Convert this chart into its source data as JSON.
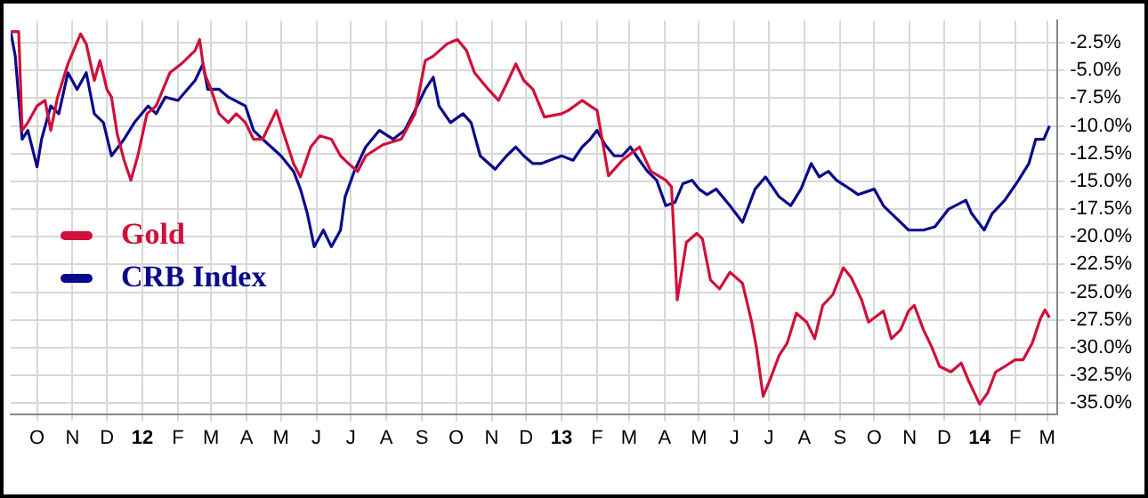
{
  "chart_data": {
    "type": "line",
    "legend": "left",
    "grid": true,
    "marker": "none",
    "line_style": "solid",
    "xlim": [
      "2011-09-08",
      "2014-03-10"
    ],
    "xticks": [
      {
        "value": "2011-10-01",
        "label": "O"
      },
      {
        "value": "2011-11-01",
        "label": "N"
      },
      {
        "value": "2011-12-01",
        "label": "D"
      },
      {
        "value": "2012-01-01",
        "label": "12"
      },
      {
        "value": "2012-02-01",
        "label": "F"
      },
      {
        "value": "2012-03-01",
        "label": "M"
      },
      {
        "value": "2012-04-01",
        "label": "A"
      },
      {
        "value": "2012-05-01",
        "label": "M"
      },
      {
        "value": "2012-06-01",
        "label": "J"
      },
      {
        "value": "2012-07-01",
        "label": "J"
      },
      {
        "value": "2012-08-01",
        "label": "A"
      },
      {
        "value": "2012-09-01",
        "label": "S"
      },
      {
        "value": "2012-10-01",
        "label": "O"
      },
      {
        "value": "2012-11-01",
        "label": "N"
      },
      {
        "value": "2012-12-01",
        "label": "D"
      },
      {
        "value": "2013-01-01",
        "label": "13"
      },
      {
        "value": "2013-02-01",
        "label": "F"
      },
      {
        "value": "2013-03-01",
        "label": "M"
      },
      {
        "value": "2013-04-01",
        "label": "A"
      },
      {
        "value": "2013-05-01",
        "label": "M"
      },
      {
        "value": "2013-06-01",
        "label": "J"
      },
      {
        "value": "2013-07-01",
        "label": "J"
      },
      {
        "value": "2013-08-01",
        "label": "A"
      },
      {
        "value": "2013-09-01",
        "label": "S"
      },
      {
        "value": "2013-10-01",
        "label": "O"
      },
      {
        "value": "2013-11-01",
        "label": "N"
      },
      {
        "value": "2013-12-01",
        "label": "D"
      },
      {
        "value": "2014-01-01",
        "label": "14"
      },
      {
        "value": "2014-02-01",
        "label": "F"
      },
      {
        "value": "2014-03-01",
        "label": "M"
      }
    ],
    "ylim": [
      -36,
      -0.5
    ],
    "yticks": [
      {
        "value": -2.5,
        "label": "-2.5%"
      },
      {
        "value": -5,
        "label": "-5.0%"
      },
      {
        "value": -7.5,
        "label": "-7.5%"
      },
      {
        "value": -10,
        "label": "-10.0%"
      },
      {
        "value": -12.5,
        "label": "-12.5%"
      },
      {
        "value": -15,
        "label": "-15.0%"
      },
      {
        "value": -17.5,
        "label": "-17.5%"
      },
      {
        "value": -20,
        "label": "-20.0%"
      },
      {
        "value": -22.5,
        "label": "-22.5%"
      },
      {
        "value": -25,
        "label": "-25.0%"
      },
      {
        "value": -27.5,
        "label": "-27.5%"
      },
      {
        "value": -30,
        "label": "-30.0%"
      },
      {
        "value": -32.5,
        "label": "-32.5%"
      },
      {
        "value": -35,
        "label": "-35.0%"
      }
    ],
    "series": [
      {
        "name": "Gold",
        "color": "#d0103a",
        "x": [
          "2011-09-08",
          "2011-09-15",
          "2011-09-18",
          "2011-09-23",
          "2011-10-01",
          "2011-10-08",
          "2011-10-13",
          "2011-10-19",
          "2011-10-28",
          "2011-11-08",
          "2011-11-13",
          "2011-11-20",
          "2011-11-25",
          "2011-12-01",
          "2011-12-05",
          "2011-12-10",
          "2011-12-16",
          "2011-12-22",
          "2011-12-28",
          "2012-01-05",
          "2012-01-13",
          "2012-01-25",
          "2012-02-04",
          "2012-02-16",
          "2012-02-20",
          "2012-02-24",
          "2012-03-01",
          "2012-03-08",
          "2012-03-16",
          "2012-03-23",
          "2012-03-31",
          "2012-04-07",
          "2012-04-15",
          "2012-04-27",
          "2012-05-05",
          "2012-05-12",
          "2012-05-18",
          "2012-05-27",
          "2012-06-04",
          "2012-06-14",
          "2012-06-22",
          "2012-06-29",
          "2012-07-07",
          "2012-07-14",
          "2012-07-29",
          "2012-08-14",
          "2012-08-26",
          "2012-09-04",
          "2012-09-11",
          "2012-09-23",
          "2012-10-02",
          "2012-10-10",
          "2012-10-17",
          "2012-10-29",
          "2012-11-07",
          "2012-11-14",
          "2012-11-22",
          "2012-11-29",
          "2012-12-07",
          "2012-12-17",
          "2013-01-01",
          "2013-01-07",
          "2013-01-19",
          "2013-01-26",
          "2013-02-01",
          "2013-02-11",
          "2013-02-23",
          "2013-03-10",
          "2013-03-20",
          "2013-04-02",
          "2013-04-07",
          "2013-04-12",
          "2013-04-20",
          "2013-04-29",
          "2013-05-04",
          "2013-05-11",
          "2013-05-19",
          "2013-05-28",
          "2013-06-08",
          "2013-06-16",
          "2013-06-20",
          "2013-06-26",
          "2013-07-02",
          "2013-07-10",
          "2013-07-17",
          "2013-07-25",
          "2013-08-03",
          "2013-08-10",
          "2013-08-17",
          "2013-08-26",
          "2013-09-04",
          "2013-09-11",
          "2013-09-20",
          "2013-09-26",
          "2013-10-09",
          "2013-10-16",
          "2013-10-24",
          "2013-10-31",
          "2013-11-05",
          "2013-11-13",
          "2013-11-20",
          "2013-11-27",
          "2013-12-07",
          "2013-12-16",
          "2013-12-22",
          "2014-01-01",
          "2014-01-08",
          "2014-01-15",
          "2014-01-23",
          "2014-02-01",
          "2014-02-08",
          "2014-02-16",
          "2014-02-23",
          "2014-02-27",
          "2014-03-03"
        ],
        "values": [
          -1.5,
          -1.5,
          -10.4,
          -9.7,
          -8.2,
          -7.7,
          -10.4,
          -7.4,
          -4.4,
          -1.7,
          -2.6,
          -5.9,
          -4.1,
          -6.7,
          -7.4,
          -10.7,
          -13.1,
          -14.9,
          -12.7,
          -8.9,
          -8.2,
          -5.2,
          -4.4,
          -3.2,
          -2.2,
          -5.2,
          -6.7,
          -8.9,
          -9.7,
          -8.9,
          -9.7,
          -11.2,
          -11.2,
          -8.6,
          -11.2,
          -13.4,
          -14.6,
          -11.9,
          -10.9,
          -11.2,
          -12.7,
          -13.4,
          -14.1,
          -12.7,
          -11.7,
          -11.2,
          -8.9,
          -4.1,
          -3.7,
          -2.6,
          -2.2,
          -3.2,
          -5.2,
          -6.7,
          -7.7,
          -6.2,
          -4.4,
          -5.9,
          -6.7,
          -9.2,
          -8.9,
          -8.6,
          -7.7,
          -8.2,
          -8.6,
          -14.5,
          -13.1,
          -11.9,
          -14.1,
          -14.9,
          -15.5,
          -25.7,
          -20.5,
          -19.7,
          -20.2,
          -23.9,
          -24.7,
          -23.2,
          -24.2,
          -27.7,
          -29.9,
          -34.4,
          -32.9,
          -30.7,
          -29.6,
          -26.9,
          -27.7,
          -29.2,
          -26.2,
          -25.2,
          -22.8,
          -23.7,
          -25.7,
          -27.7,
          -26.7,
          -29.2,
          -28.4,
          -26.7,
          -26.2,
          -28.4,
          -29.9,
          -31.7,
          -32.2,
          -31.4,
          -32.9,
          -35.1,
          -34.1,
          -32.2,
          -31.7,
          -31.1,
          -31.1,
          -29.6,
          -27.4,
          -26.6,
          -27.3
        ]
      },
      {
        "name": "CRB Index",
        "color": "#0a0a8c",
        "x": [
          "2011-09-08",
          "2011-09-12",
          "2011-09-18",
          "2011-09-23",
          "2011-10-01",
          "2011-10-05",
          "2011-10-13",
          "2011-10-20",
          "2011-10-28",
          "2011-11-05",
          "2011-11-13",
          "2011-11-20",
          "2011-11-28",
          "2011-12-05",
          "2011-12-16",
          "2011-12-25",
          "2012-01-06",
          "2012-01-13",
          "2012-01-21",
          "2012-02-01",
          "2012-02-16",
          "2012-02-23",
          "2012-02-27",
          "2012-03-08",
          "2012-03-16",
          "2012-03-31",
          "2012-04-07",
          "2012-04-15",
          "2012-05-01",
          "2012-05-12",
          "2012-05-18",
          "2012-05-24",
          "2012-05-30",
          "2012-06-07",
          "2012-06-14",
          "2012-06-22",
          "2012-06-26",
          "2012-07-04",
          "2012-07-14",
          "2012-07-26",
          "2012-08-07",
          "2012-08-17",
          "2012-08-26",
          "2012-09-04",
          "2012-09-11",
          "2012-09-16",
          "2012-09-26",
          "2012-10-07",
          "2012-10-14",
          "2012-10-22",
          "2012-11-04",
          "2012-11-14",
          "2012-11-22",
          "2012-11-29",
          "2012-12-07",
          "2012-12-14",
          "2013-01-01",
          "2013-01-11",
          "2013-01-19",
          "2013-01-26",
          "2013-02-01",
          "2013-02-08",
          "2013-02-16",
          "2013-02-23",
          "2013-03-02",
          "2013-03-10",
          "2013-03-17",
          "2013-03-25",
          "2013-04-02",
          "2013-04-10",
          "2013-04-17",
          "2013-04-25",
          "2013-05-01",
          "2013-05-08",
          "2013-05-16",
          "2013-05-28",
          "2013-06-08",
          "2013-06-19",
          "2013-06-28",
          "2013-07-10",
          "2013-07-20",
          "2013-07-29",
          "2013-08-07",
          "2013-08-14",
          "2013-08-22",
          "2013-08-29",
          "2013-09-10",
          "2013-09-17",
          "2013-10-01",
          "2013-10-09",
          "2013-10-16",
          "2013-10-31",
          "2013-11-13",
          "2013-11-23",
          "2013-12-05",
          "2013-12-20",
          "2013-12-25",
          "2014-01-05",
          "2014-01-12",
          "2014-01-23",
          "2014-02-04",
          "2014-02-13",
          "2014-02-19",
          "2014-02-26",
          "2014-03-03"
        ],
        "values": [
          -1.5,
          -3.7,
          -11.2,
          -10.4,
          -13.7,
          -11.2,
          -8.2,
          -8.9,
          -5.2,
          -6.7,
          -5.2,
          -8.9,
          -9.7,
          -12.7,
          -11.2,
          -9.7,
          -8.2,
          -8.9,
          -7.4,
          -7.7,
          -5.9,
          -4.4,
          -6.7,
          -6.7,
          -7.4,
          -8.2,
          -10.4,
          -11.2,
          -12.7,
          -14.1,
          -15.7,
          -17.9,
          -20.9,
          -19.4,
          -20.9,
          -19.4,
          -16.4,
          -14.1,
          -11.9,
          -10.4,
          -11.2,
          -10.4,
          -8.6,
          -6.7,
          -5.6,
          -8.2,
          -9.7,
          -8.9,
          -9.7,
          -12.7,
          -13.9,
          -12.7,
          -11.9,
          -12.7,
          -13.4,
          -13.4,
          -12.7,
          -13.1,
          -11.9,
          -11.2,
          -10.4,
          -11.7,
          -12.7,
          -12.7,
          -11.9,
          -13.1,
          -14.1,
          -14.9,
          -17.2,
          -16.9,
          -15.2,
          -14.9,
          -15.7,
          -16.2,
          -15.7,
          -17.2,
          -18.7,
          -15.7,
          -14.6,
          -16.4,
          -17.2,
          -15.7,
          -13.4,
          -14.6,
          -14.1,
          -14.9,
          -15.7,
          -16.2,
          -15.7,
          -17.2,
          -17.9,
          -19.4,
          -19.4,
          -19.1,
          -17.5,
          -16.7,
          -17.9,
          -19.4,
          -17.9,
          -16.7,
          -14.9,
          -13.4,
          -11.2,
          -11.2,
          -10.0
        ]
      }
    ]
  }
}
